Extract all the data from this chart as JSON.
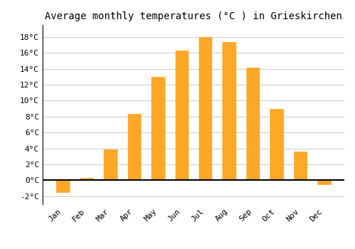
{
  "title": "Average monthly temperatures (°C ) in Grieskirchen",
  "months": [
    "Jan",
    "Feb",
    "Mar",
    "Apr",
    "May",
    "Jun",
    "Jul",
    "Aug",
    "Sep",
    "Oct",
    "Nov",
    "Dec"
  ],
  "values": [
    -1.5,
    0.3,
    3.9,
    8.3,
    13.0,
    16.3,
    18.0,
    17.4,
    14.1,
    9.0,
    3.6,
    -0.5
  ],
  "bar_color": "#FFA726",
  "bar_edge_color": "#FFA726",
  "background_color": "#FFFFFF",
  "grid_color": "#CCCCCC",
  "ylim": [
    -3,
    19.5
  ],
  "yticks": [
    -2,
    0,
    2,
    4,
    6,
    8,
    10,
    12,
    14,
    16,
    18
  ],
  "zero_line_color": "#000000",
  "title_fontsize": 10,
  "tick_fontsize": 8,
  "font_family": "monospace",
  "bar_width": 0.55
}
